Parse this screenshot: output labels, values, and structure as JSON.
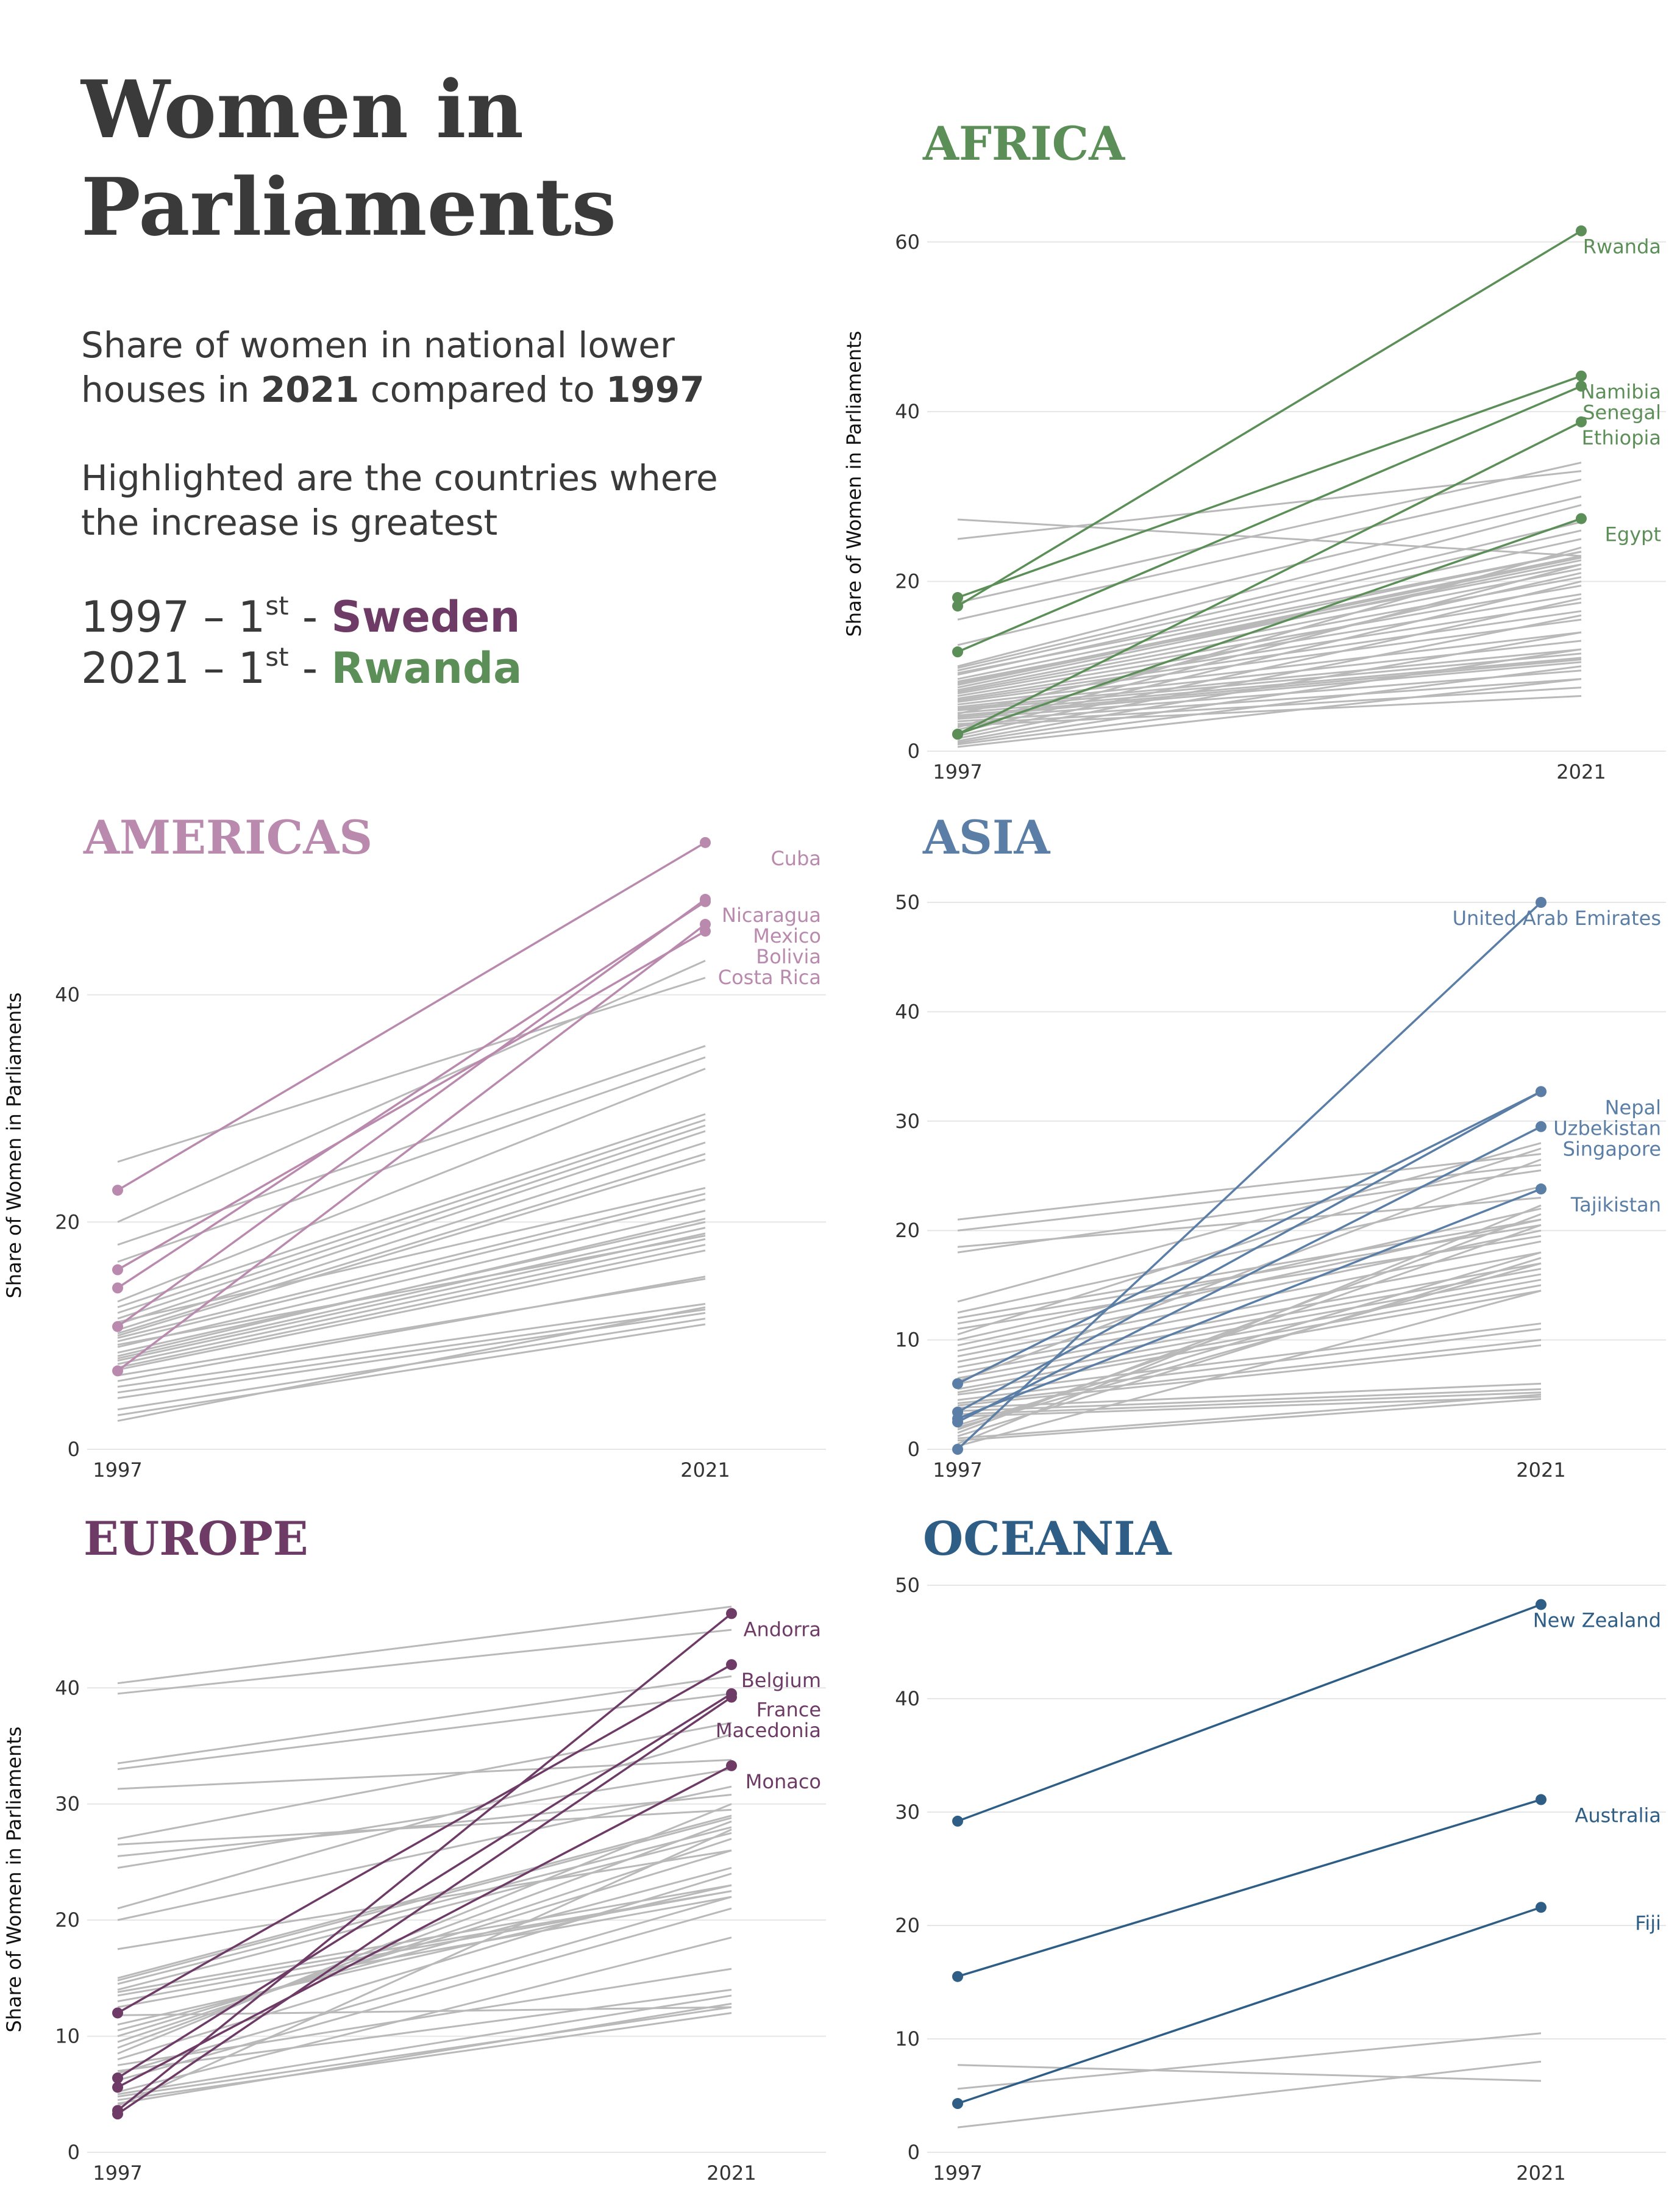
{
  "header": {
    "title": "Women in Parliaments",
    "subtitle_lead": "Share of women in national lower houses in ",
    "subtitle_year1": "2021",
    "subtitle_mid": " compared to ",
    "subtitle_year2": "1997",
    "highlight_note": "Highlighted are the countries where the increase is greatest",
    "rank_1997_year": "1997",
    "rank_1997_sep": " – 1",
    "rank_1997_sup": "st",
    "rank_1997_dash": " -  ",
    "rank_1997_country": "Sweden",
    "rank_2021_year": "2021",
    "rank_2021_sep": " – 1",
    "rank_2021_sup": "st",
    "rank_2021_dash": " -  ",
    "rank_2021_country": "Rwanda"
  },
  "colors": {
    "text": "#3a3a3a",
    "grid": "#e6e6e6",
    "background_lines": "#b9b9b9",
    "africa": "#5b8f57",
    "americas": "#b98aad",
    "asia": "#5a7ea6",
    "europe": "#6e3b66",
    "oceania": "#2e5e86",
    "sweden": "#6e3b66",
    "rwanda": "#5b8f57"
  },
  "chart_data": [
    {
      "region": "AFRICA",
      "type": "line",
      "x": [
        "1997",
        "2021"
      ],
      "ylabel": "Share of Women in Parliaments",
      "ylim": [
        0,
        63
      ],
      "yticks": [
        0,
        20,
        40,
        60
      ],
      "color": "#5b8f57",
      "highlight": [
        {
          "name": "Rwanda",
          "values": [
            17.1,
            61.3
          ]
        },
        {
          "name": "Namibia",
          "values": [
            18.1,
            44.2
          ]
        },
        {
          "name": "Senegal",
          "values": [
            11.7,
            43.0
          ]
        },
        {
          "name": "Ethiopia",
          "values": [
            2.0,
            38.8
          ]
        },
        {
          "name": "Egypt",
          "values": [
            2.0,
            27.4
          ]
        }
      ],
      "others": [
        [
          27.3,
          23
        ],
        [
          25,
          33
        ],
        [
          17.5,
          34
        ],
        [
          15.5,
          32
        ],
        [
          12.5,
          30
        ],
        [
          10,
          29
        ],
        [
          9.8,
          27
        ],
        [
          9.5,
          26
        ],
        [
          9,
          25
        ],
        [
          8.5,
          23.5
        ],
        [
          8,
          23
        ],
        [
          7.8,
          22.8
        ],
        [
          7.5,
          22.5
        ],
        [
          7.2,
          21.5
        ],
        [
          7,
          20.5
        ],
        [
          6.8,
          19.5
        ],
        [
          6.5,
          18.5
        ],
        [
          6.2,
          17.5
        ],
        [
          6,
          16.5
        ],
        [
          5.8,
          15.5
        ],
        [
          5.5,
          14
        ],
        [
          5.2,
          13
        ],
        [
          5,
          12
        ],
        [
          4.8,
          11.5
        ],
        [
          4.5,
          11
        ],
        [
          4.2,
          10.8
        ],
        [
          4,
          10.5
        ],
        [
          3.8,
          9.5
        ],
        [
          3.5,
          8.5
        ],
        [
          3.2,
          7.5
        ],
        [
          3,
          6.5
        ],
        [
          2.8,
          24
        ],
        [
          2.5,
          22
        ],
        [
          2.2,
          20
        ],
        [
          1.8,
          18
        ],
        [
          1.5,
          16
        ],
        [
          1.2,
          14
        ],
        [
          1,
          12
        ],
        [
          0.8,
          10
        ],
        [
          0.5,
          8.5
        ],
        [
          9.2,
          23.5
        ],
        [
          8.2,
          22
        ],
        [
          4.4,
          21
        ]
      ]
    },
    {
      "region": "AMERICAS",
      "type": "line",
      "x": [
        "1997",
        "2021"
      ],
      "ylabel": "Share of Women in Parliaments",
      "ylim": [
        0,
        53.5
      ],
      "yticks": [
        0,
        20,
        40
      ],
      "color": "#b98aad",
      "highlight": [
        {
          "name": "Cuba",
          "values": [
            22.8,
            53.4
          ]
        },
        {
          "name": "Nicaragua",
          "values": [
            10.8,
            48.4
          ]
        },
        {
          "name": "Mexico",
          "values": [
            14.2,
            48.2
          ]
        },
        {
          "name": "Bolivia",
          "values": [
            6.9,
            46.2
          ]
        },
        {
          "name": "Costa Rica",
          "values": [
            15.8,
            45.6
          ]
        }
      ],
      "others": [
        [
          25.3,
          41.5
        ],
        [
          20,
          43
        ],
        [
          18,
          35.5
        ],
        [
          16.5,
          34.5
        ],
        [
          13,
          33.5
        ],
        [
          12.5,
          29.5
        ],
        [
          12,
          29
        ],
        [
          11.5,
          28.5
        ],
        [
          11,
          28
        ],
        [
          10.5,
          27
        ],
        [
          10.2,
          26
        ],
        [
          10,
          25.5
        ],
        [
          9.8,
          22.5
        ],
        [
          9.5,
          22
        ],
        [
          9,
          21
        ],
        [
          8.5,
          20
        ],
        [
          8,
          19.5
        ],
        [
          7.8,
          19
        ],
        [
          7.5,
          18.5
        ],
        [
          7.2,
          18
        ],
        [
          7,
          17.5
        ],
        [
          6.5,
          15
        ],
        [
          6,
          15.2
        ],
        [
          5.5,
          12.8
        ],
        [
          5,
          12.3
        ],
        [
          4.5,
          12
        ],
        [
          3.5,
          11.5
        ],
        [
          3,
          11
        ],
        [
          2.5,
          12.5
        ],
        [
          8.2,
          20.3
        ],
        [
          9.2,
          18.8
        ],
        [
          11.2,
          23
        ]
      ]
    },
    {
      "region": "ASIA",
      "type": "line",
      "x": [
        "1997",
        "2021"
      ],
      "ylabel": "",
      "ylim": [
        0,
        50
      ],
      "yticks": [
        0,
        10,
        20,
        30,
        40,
        50
      ],
      "color": "#5a7ea6",
      "highlight": [
        {
          "name": "United Arab Emirates",
          "values": [
            0.0,
            50.0
          ]
        },
        {
          "name": "Nepal",
          "values": [
            3.4,
            32.7
          ]
        },
        {
          "name": "Uzbekistan",
          "values": [
            6.0,
            32.7
          ]
        },
        {
          "name": "Singapore",
          "values": [
            2.5,
            29.5
          ]
        },
        {
          "name": "Tajikistan",
          "values": [
            2.8,
            23.8
          ]
        }
      ],
      "others": [
        [
          21,
          27
        ],
        [
          20,
          26
        ],
        [
          18.5,
          23
        ],
        [
          18,
          25.5
        ],
        [
          13.5,
          28
        ],
        [
          12.5,
          24
        ],
        [
          12,
          21
        ],
        [
          11.5,
          20.5
        ],
        [
          11,
          19.5
        ],
        [
          10.5,
          27.5
        ],
        [
          10,
          22
        ],
        [
          9.5,
          21
        ],
        [
          9,
          20
        ],
        [
          8.5,
          19
        ],
        [
          8,
          18
        ],
        [
          7.5,
          17
        ],
        [
          7,
          16.5
        ],
        [
          6.5,
          16
        ],
        [
          6,
          15.5
        ],
        [
          5.5,
          15
        ],
        [
          5.2,
          14.5
        ],
        [
          5,
          11.5
        ],
        [
          4.5,
          11
        ],
        [
          4.2,
          10
        ],
        [
          4,
          9.5
        ],
        [
          3.8,
          6
        ],
        [
          3.5,
          5.5
        ],
        [
          3.2,
          5.2
        ],
        [
          3,
          4.8
        ],
        [
          2.2,
          18
        ],
        [
          2,
          17
        ],
        [
          1.8,
          20.5
        ],
        [
          1.5,
          21.5
        ],
        [
          1.2,
          17.5
        ],
        [
          1,
          5
        ],
        [
          0.8,
          4.6
        ],
        [
          0.5,
          22.3
        ],
        [
          0.3,
          14.5
        ],
        [
          6.2,
          26.5
        ]
      ]
    },
    {
      "region": "EUROPE",
      "type": "line",
      "x": [
        "1997",
        "2021"
      ],
      "ylabel": "Share of Women in Parliaments",
      "ylim": [
        0,
        47
      ],
      "yticks": [
        0,
        10,
        20,
        30,
        40
      ],
      "color": "#6e3b66",
      "highlight": [
        {
          "name": "Andorra",
          "values": [
            3.6,
            46.4
          ]
        },
        {
          "name": "Belgium",
          "values": [
            12.0,
            42.0
          ]
        },
        {
          "name": "France",
          "values": [
            6.4,
            39.5
          ]
        },
        {
          "name": "Macedonia",
          "values": [
            3.3,
            39.2
          ]
        },
        {
          "name": "Monaco",
          "values": [
            5.6,
            33.3
          ]
        }
      ],
      "others": [
        [
          40.4,
          47
        ],
        [
          39.5,
          45
        ],
        [
          33.5,
          41
        ],
        [
          33,
          39.5
        ],
        [
          31.3,
          33.8
        ],
        [
          27,
          37
        ],
        [
          26.5,
          29.5
        ],
        [
          25.5,
          30.8
        ],
        [
          24.5,
          33
        ],
        [
          21,
          36
        ],
        [
          20,
          31.5
        ],
        [
          17.5,
          26
        ],
        [
          15,
          29
        ],
        [
          14.5,
          28
        ],
        [
          14,
          27.5
        ],
        [
          13.8,
          23
        ],
        [
          13.5,
          22.5
        ],
        [
          13,
          22.5
        ],
        [
          12.5,
          22
        ],
        [
          11,
          23
        ],
        [
          10.5,
          24.5
        ],
        [
          10,
          26
        ],
        [
          9.5,
          27
        ],
        [
          9,
          28.5
        ],
        [
          8.5,
          30
        ],
        [
          8,
          24
        ],
        [
          7.5,
          15.8
        ],
        [
          7,
          14
        ],
        [
          6.8,
          22
        ],
        [
          6.2,
          21
        ],
        [
          5.2,
          18.5
        ],
        [
          5,
          13.5
        ],
        [
          4.8,
          12.5
        ],
        [
          4.5,
          12
        ],
        [
          4.2,
          12.8
        ],
        [
          4,
          27.8
        ],
        [
          11.8,
          12.5
        ],
        [
          14.8,
          28.8
        ]
      ]
    },
    {
      "region": "OCEANIA",
      "type": "line",
      "x": [
        "1997",
        "2021"
      ],
      "ylabel": "",
      "ylim": [
        0,
        50
      ],
      "yticks": [
        0,
        10,
        20,
        30,
        40,
        50
      ],
      "color": "#2e5e86",
      "highlight": [
        {
          "name": "New Zealand",
          "values": [
            29.2,
            48.3
          ]
        },
        {
          "name": "Australia",
          "values": [
            15.5,
            31.1
          ]
        },
        {
          "name": "Fiji",
          "values": [
            4.3,
            21.6
          ]
        }
      ],
      "others": [
        [
          7.7,
          6.3
        ],
        [
          5.6,
          10.5
        ],
        [
          2.2,
          8
        ]
      ]
    }
  ]
}
